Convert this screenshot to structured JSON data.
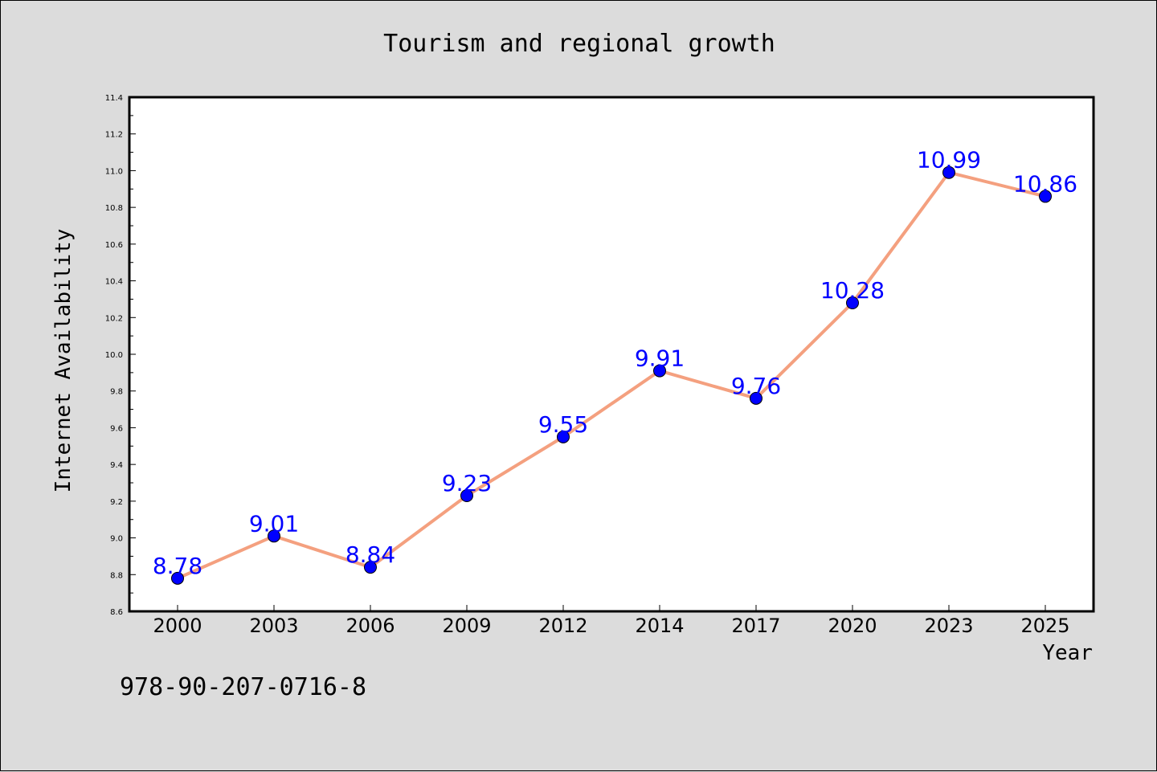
{
  "chart_data": {
    "type": "line",
    "title": "Tourism and regional growth",
    "xlabel": "Year",
    "ylabel": "Internet Availability",
    "categories": [
      "2000",
      "2003",
      "2006",
      "2009",
      "2012",
      "2014",
      "2017",
      "2020",
      "2023",
      "2025"
    ],
    "series": [
      {
        "values": [
          8.78,
          9.01,
          8.84,
          9.23,
          9.55,
          9.91,
          9.76,
          10.28,
          10.99,
          10.86
        ],
        "labels": [
          "8.78",
          "9.01",
          "8.84",
          "9.23",
          "9.55",
          "9.91",
          "9.76",
          "10.28",
          "10.99",
          "10.86"
        ],
        "line_color": "#f4a07f",
        "marker_color": "#0000ff"
      }
    ],
    "ylim": [
      8.6,
      11.4
    ],
    "y_ticks": [
      "8.6",
      "8.8",
      "9.0",
      "9.2",
      "9.4",
      "9.6",
      "9.8",
      "10.0",
      "10.2",
      "10.4",
      "10.6",
      "10.8",
      "11.0",
      "11.2",
      "11.4"
    ],
    "grid": false,
    "background": "#dcdcdc",
    "plot_background": "#ffffff",
    "label_color": "#0000ff"
  },
  "footer": {
    "code": "978-90-207-0716-8"
  }
}
